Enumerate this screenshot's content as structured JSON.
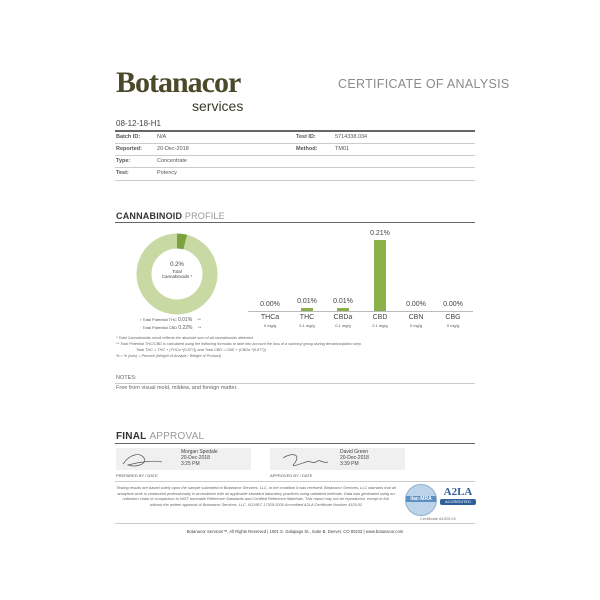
{
  "header": {
    "logo_main": "Botanacor",
    "logo_sub": "services",
    "title": "CERTIFICATE OF ANALYSIS"
  },
  "sample": {
    "id": "08-12-18-H1",
    "rows": [
      {
        "label": "Batch ID:",
        "value": "N/A",
        "label2": "Test ID:",
        "value2": "5714338.034"
      },
      {
        "label": "Reported:",
        "value": "20-Dec-2018",
        "label2": "Method:",
        "value2": "TM01"
      },
      {
        "label": "Type:",
        "value": "Concentrate"
      },
      {
        "label": "Test:",
        "value": "Potency"
      }
    ]
  },
  "profile": {
    "heading_bold": "CANNABINOID",
    "heading_light": "PROFILE",
    "donut": {
      "value": "0.2%",
      "label_line1": "Total",
      "label_line2": "Cannabinoids *",
      "slice_fraction": 0.04,
      "colors": {
        "main": "#c8d9a4",
        "slice": "#7ba23f"
      }
    },
    "legend": [
      {
        "label": "Total Potential THC",
        "value": "0.01%",
        "mark": "**"
      },
      {
        "label": "Total Potential CBD",
        "value": "0.22%",
        "mark": "**"
      }
    ]
  },
  "chart_data": {
    "type": "bar",
    "categories": [
      "THCa",
      "THC",
      "CBDa",
      "CBD",
      "CBN",
      "CBG"
    ],
    "values": [
      0.0,
      0.01,
      0.01,
      0.21,
      0.0,
      0.0
    ],
    "value_labels": [
      "0.00%",
      "0.01%",
      "0.01%",
      "0.21%",
      "0.00%",
      "0.00%"
    ],
    "units": [
      "0 mg/g",
      "0.1 mg/g",
      "0.1 mg/g",
      "2.1 mg/g",
      "0 mg/g",
      "0 mg/g"
    ],
    "bar_color": "#8cb04a"
  },
  "footnotes": [
    "* Total Cannabinoids result reflects the absolute sum of all cannabinoids detected.",
    "** Total Potential THC/CBD is calculated using the following formulas to take into account the loss of a carboxyl group during decarboxylation step.",
    "Total THC = THC + (THCa *(0.877)) and Total CBD = CBD + (CBDa *(0.877))",
    "% = % (w/w) = Percent (Weight of Analyte / Weight of Product)"
  ],
  "notes": {
    "heading": "NOTES:",
    "text": "Free from visual mold, mildew, and foreign matter."
  },
  "approval": {
    "heading_bold": "FINAL",
    "heading_light": "APPROVAL",
    "prepared": {
      "name": "Morgan Spedale",
      "date": "20-Dec-2018",
      "time": "3:25 PM",
      "caption": "PREPARED BY / DATE"
    },
    "approved": {
      "name": "David Green",
      "date": "20-Dec-2018",
      "time": "3:39 PM",
      "caption": "APPROVED BY / DATE"
    }
  },
  "disclaimer": "Testing results are based solely upon the sample submitted to Botanacor Services, LLC, in the condition it was received. Botanacor Services, LLC warrants that all analytical work is conducted professionally in accordance with all applicable standard laboratory practices using validated methods. Data was generated using an unbroken chain of comparison to NIST traceable Reference Standards and Certified Reference Materials. This report may not be reproduced, except in full, without the written approval of Botanacor Services, LLC. ISO/IEC 17025:2005 Accredited A2LA Certificate Number 4329.02",
  "accreditation": {
    "ilac": "ilac-MRA",
    "a2la": "A2LA",
    "accredited": "ACCREDITED",
    "certificate": "Certificate #4329.02"
  },
  "footer": "Botanacor Services™, All Rights Reserved | 1001 S. Galapago St., Suite B, Denver, CO 80223 | www.botanacor.com"
}
